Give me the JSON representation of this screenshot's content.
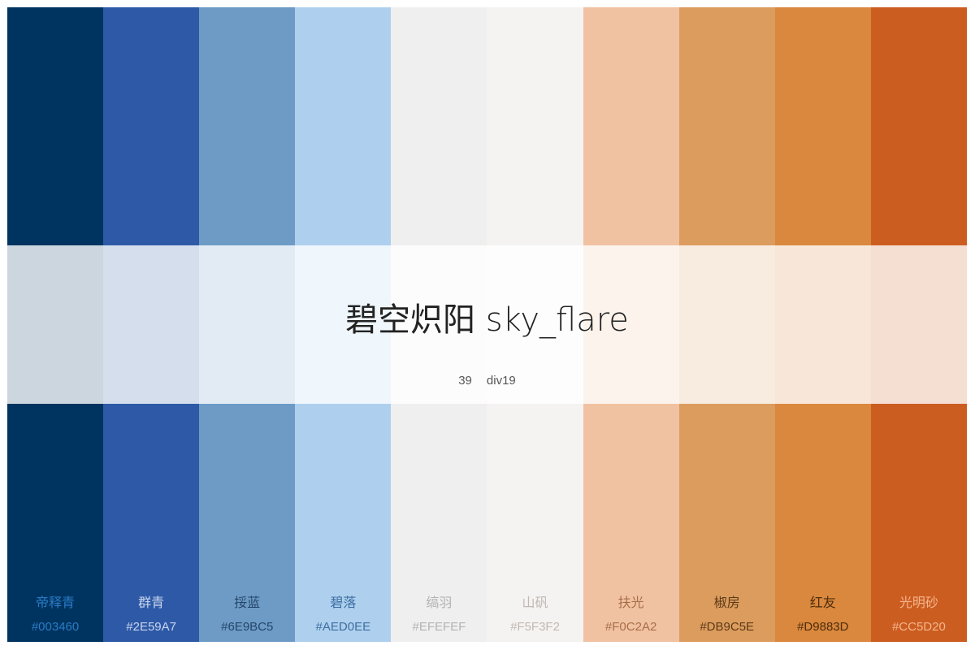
{
  "palette": {
    "title": "碧空炽阳 sky_flare",
    "count": "39",
    "code": "div19",
    "colors": [
      {
        "name": "帝释青",
        "hex": "#003460",
        "bg": "#003460",
        "text": "#2a7bc6"
      },
      {
        "name": "群青",
        "hex": "#2E59A7",
        "bg": "#2E59A7",
        "text": "#c9d6ee"
      },
      {
        "name": "挼蓝",
        "hex": "#6E9BC5",
        "bg": "#6E9BC5",
        "text": "#23466a"
      },
      {
        "name": "碧落",
        "hex": "#AED0EE",
        "bg": "#AED0EE",
        "text": "#3d6ea0"
      },
      {
        "name": "缟羽",
        "hex": "#EFEFEF",
        "bg": "#EFEFEF",
        "text": "#b3b3b3"
      },
      {
        "name": "山矾",
        "hex": "#F5F3F2",
        "bg": "#F5F3F2",
        "text": "#c0b9b4"
      },
      {
        "name": "扶光",
        "hex": "#F0C2A2",
        "bg": "#F0C2A2",
        "text": "#a86e48"
      },
      {
        "name": "椒房",
        "hex": "#DB9C5E",
        "bg": "#DB9C5E",
        "text": "#5e3a17"
      },
      {
        "name": "红友",
        "hex": "#D9883D",
        "bg": "#D9883D",
        "text": "#4f2c0b"
      },
      {
        "name": "光明砂",
        "hex": "#CC5D20",
        "bg": "#CC5D20",
        "text": "#f3b58e"
      }
    ]
  }
}
